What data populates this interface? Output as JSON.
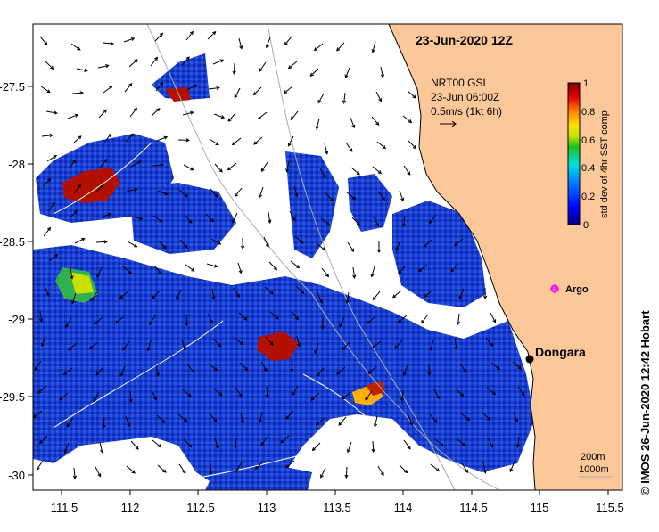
{
  "map": {
    "date_title": "23-Jun-2020 12Z",
    "product": {
      "line1": "NRT00 GSL",
      "line2": "23-Jun 06:00Z",
      "line3": "0.5m/s (1kt 6h)"
    },
    "lon_range": [
      111.3,
      115.6
    ],
    "lat_range": [
      -30.1,
      -27.05
    ],
    "lon_ticks": [
      "111.5",
      "112",
      "112.5",
      "113",
      "113.5",
      "114",
      "114.5",
      "115",
      "115.5"
    ],
    "lat_ticks": [
      "-27.5",
      "-28",
      "-28.5",
      "-29",
      "-29.5",
      "-30"
    ],
    "places": [
      {
        "name": "Dongara",
        "lon": 114.93,
        "lat": -29.25
      },
      {
        "name": "Argo",
        "lon": 115.1,
        "lat": -28.85
      }
    ],
    "contour_labels": [
      "200m",
      "1000m"
    ],
    "credit": "© IMOS 26-Jun-2020 12:42 Hobart",
    "colors": {
      "land": "#fdc899",
      "argo": "#ff00ff",
      "high_patch": "#b21000"
    }
  },
  "colorbar": {
    "label": "std dev of 4hr SST comp",
    "min": 0,
    "max": 1,
    "ticks": [
      "1",
      "0.8",
      "0.6",
      "0.4",
      "0.2",
      "0"
    ]
  }
}
